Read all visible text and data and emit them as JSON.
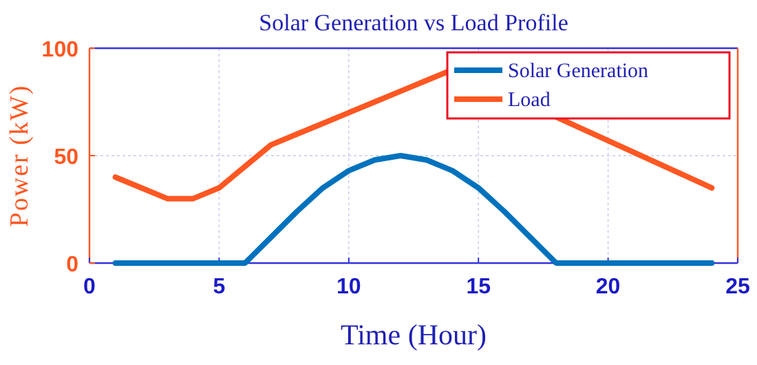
{
  "chart_data": {
    "type": "line",
    "title": "Solar Generation vs Load Profile",
    "xlabel": "Time (Hour)",
    "ylabel": "Power (kW)",
    "xlim": [
      0,
      25
    ],
    "xticks": [
      0,
      5,
      10,
      15,
      20,
      25
    ],
    "ylim": [
      0,
      100
    ],
    "yticks": [
      0,
      50,
      100
    ],
    "grid": true,
    "legend": "top right",
    "line_style": "solid",
    "marker": "none",
    "series": [
      {
        "name": "Solar Generation",
        "color": "#0072bd",
        "x": [
          1,
          2,
          3,
          4,
          5,
          6,
          7,
          8,
          9,
          10,
          11,
          12,
          13,
          14,
          15,
          16,
          17,
          18,
          19,
          20,
          21,
          22,
          23,
          24
        ],
        "values": [
          0,
          0,
          0,
          0,
          0,
          0,
          12,
          24,
          35,
          43,
          48,
          50,
          48,
          43,
          35,
          24,
          12,
          0,
          0,
          0,
          0,
          0,
          0,
          0
        ]
      },
      {
        "name": "Load",
        "color": "#ff5722",
        "x": [
          1,
          2,
          3,
          4,
          5,
          6,
          7,
          8,
          9,
          10,
          11,
          12,
          13,
          14,
          24
        ],
        "values": [
          40,
          35,
          30,
          30,
          35,
          45,
          55,
          60,
          65,
          70,
          75,
          80,
          85,
          90,
          35
        ]
      }
    ]
  }
}
